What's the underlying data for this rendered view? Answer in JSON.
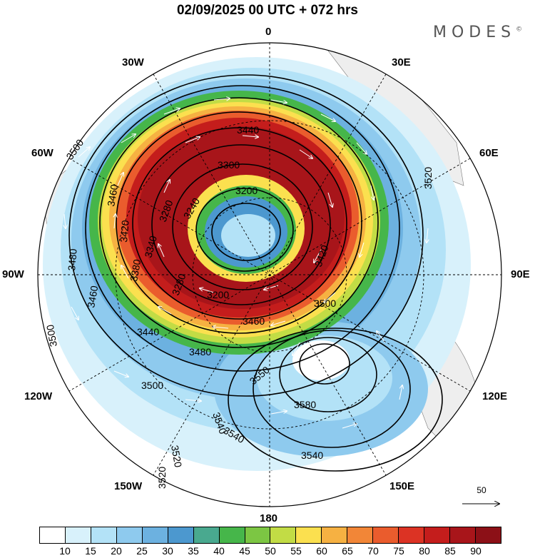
{
  "title": "02/09/2025  00 UTC  + 072 hrs",
  "brand": "MODES",
  "brand_mark": "©",
  "lon_labels": [
    {
      "key": "n",
      "text": "0"
    },
    {
      "key": "ne30",
      "text": "30E"
    },
    {
      "key": "ne60",
      "text": "60E"
    },
    {
      "key": "e90",
      "text": "90E"
    },
    {
      "key": "e120",
      "text": "120E"
    },
    {
      "key": "e150",
      "text": "150E"
    },
    {
      "key": "s180",
      "text": "180"
    },
    {
      "key": "w150",
      "text": "150W"
    },
    {
      "key": "w120",
      "text": "120W"
    },
    {
      "key": "w90",
      "text": "90W"
    },
    {
      "key": "w60",
      "text": "60W"
    },
    {
      "key": "w30",
      "text": "30W"
    }
  ],
  "contour_labels": [
    "3200",
    "3200",
    "3240",
    "3280",
    "3280",
    "3300",
    "3340",
    "3380",
    "3420",
    "3420",
    "3440",
    "3440",
    "3460",
    "3460",
    "3460",
    "3480",
    "3480",
    "3500",
    "3500",
    "3500",
    "3500",
    "3520",
    "3520",
    "3520",
    "3540",
    "3540",
    "3540",
    "3550",
    "3580"
  ],
  "colorbar": {
    "colors": [
      "#ffffff",
      "#d8f1fb",
      "#b3e2f7",
      "#8ecaee",
      "#6cb1e0",
      "#4c98cf",
      "#49a98f",
      "#46b64a",
      "#7cc643",
      "#c2dc45",
      "#fbe04f",
      "#f6b142",
      "#f28637",
      "#ea5c2d",
      "#dc3324",
      "#c41d1c",
      "#a8151a",
      "#8c1017"
    ],
    "ticks": [
      "10",
      "15",
      "20",
      "25",
      "30",
      "35",
      "40",
      "45",
      "50",
      "55",
      "60",
      "65",
      "70",
      "75",
      "80",
      "85",
      "90"
    ]
  },
  "reference_vector": {
    "label": "50"
  }
}
